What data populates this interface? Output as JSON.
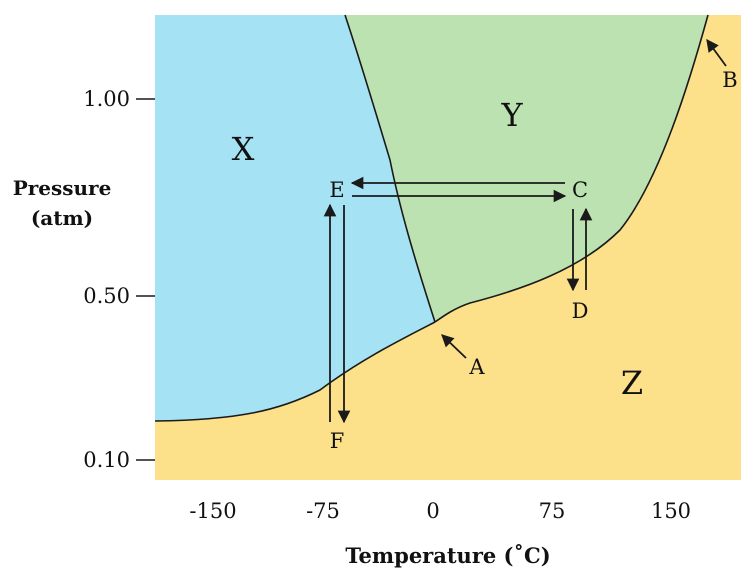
{
  "axes": {
    "x_title": "Temperature (˚C)",
    "y_title_line1": "Pressure",
    "y_title_line2": "(atm)",
    "x_ticks": [
      "-150",
      "-75",
      "0",
      "75",
      "150"
    ],
    "y_ticks": [
      "1.00",
      "0.50",
      "0.10"
    ]
  },
  "regions": {
    "x": "X",
    "y": "Y",
    "z": "Z"
  },
  "points": {
    "a": "A",
    "b": "B",
    "c": "C",
    "d": "D",
    "e": "E",
    "f": "F"
  },
  "colors": {
    "region_x": "#a5e3f4",
    "region_y": "#bce2b1",
    "region_z": "#fde08a",
    "line": "#1a1a1a"
  }
}
